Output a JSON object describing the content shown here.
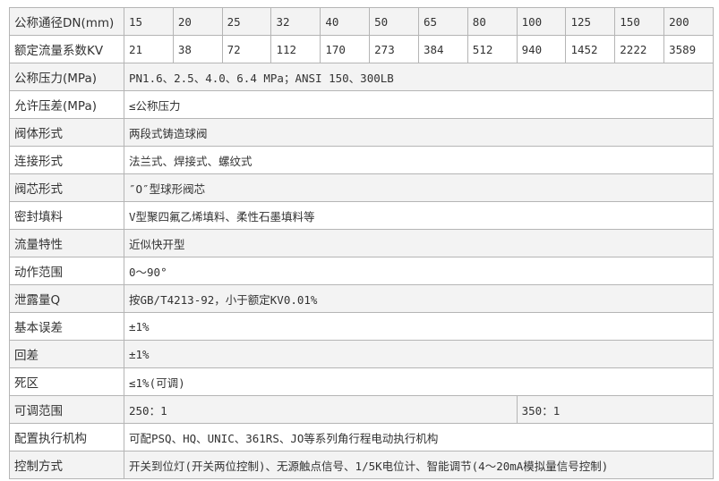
{
  "dn_row": {
    "label": "公称通径DN(mm)",
    "values": [
      "15",
      "20",
      "25",
      "32",
      "40",
      "50",
      "65",
      "80",
      "100",
      "125",
      "150",
      "200"
    ]
  },
  "kv_row": {
    "label": "额定流量系数KV",
    "values": [
      "21",
      "38",
      "72",
      "112",
      "170",
      "273",
      "384",
      "512",
      "940",
      "1452",
      "2222",
      "3589"
    ]
  },
  "spec_rows": [
    {
      "label": "公称压力(MPa)",
      "value": "PN1.6、2.5、4.0、6.4 MPa；ANSI 150、300LB"
    },
    {
      "label": "允许压差(MPa)",
      "value": "≤公称压力"
    },
    {
      "label": "阀体形式",
      "value": "两段式铸造球阀"
    },
    {
      "label": "连接形式",
      "value": "法兰式、焊接式、螺纹式"
    },
    {
      "label": "阀芯形式",
      "value": "″O″型球形阀芯"
    },
    {
      "label": "密封填料",
      "value": "V型聚四氟乙烯填料、柔性石墨填料等"
    },
    {
      "label": "流量特性",
      "value": "近似快开型"
    },
    {
      "label": "动作范围",
      "value": "0～90°"
    },
    {
      "label": "泄露量Q",
      "value": "按GB/T4213-92，小于额定KV0.01%"
    },
    {
      "label": "基本误差",
      "value": "±1%"
    },
    {
      "label": "回差",
      "value": "±1%"
    },
    {
      "label": "死区",
      "value": "≤1%(可调)"
    }
  ],
  "range_row": {
    "label": "可调范围",
    "value_small": "250：1",
    "value_large": "350：1"
  },
  "actuator_row": {
    "label": "配置执行机构",
    "value": "可配PSQ、HQ、UNIC、361RS、JO等系列角行程电动执行机构"
  },
  "control_row": {
    "label": "控制方式",
    "value": "开关到位灯(开关两位控制)、无源触点信号、1/5K电位计、智能调节(4～20mA模拟量信号控制)"
  }
}
